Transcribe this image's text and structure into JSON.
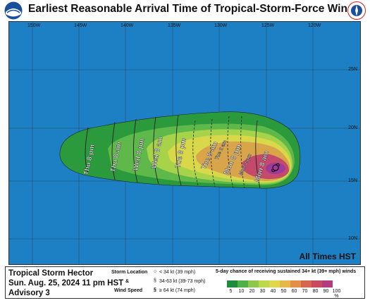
{
  "header": {
    "title": "Earliest Reasonable Arrival Time of Tropical-Storm-Force Winds",
    "left_logo": "noaa-logo",
    "right_logo": "nws-logo"
  },
  "map": {
    "longitude_labels": [
      "150W",
      "145W",
      "140W",
      "135W",
      "130W",
      "125W",
      "120W"
    ],
    "latitude_labels": [
      "25N",
      "20N",
      "15N",
      "10N"
    ],
    "arrival_labels": [
      "Thu 8 pm",
      "Thu 8 am",
      "Wed 8 pm",
      "Wed 8 am",
      "Tue 8 pm",
      "Tue 8 am",
      "Tue 2 am",
      "Mon 8 pm",
      "Mon 2 pm",
      "Mon 8 am"
    ],
    "timezone_note": "All Times HST",
    "colors": {
      "ocean": "#1d80c5",
      "cone_dark": "#2a9a3c",
      "cone_mid": "#5fb84a",
      "cone_light": "#a7d34a",
      "cone_yellow": "#d9d84a",
      "cone_orange": "#d8a54a",
      "cone_core": "#c34a6a",
      "cone_center": "#a03a9a"
    }
  },
  "footer": {
    "storm_name": "Tropical Storm Hector",
    "date": "Sun. Aug. 25, 2024  11 pm HST",
    "advisory": "Advisory 3",
    "legend_storm_location": "Storm Location",
    "legend_amp": "&",
    "legend_wind_speed": "Wind Speed",
    "legend_items": [
      "< 34 kt (39 mph)",
      "34-63 kt (39-73 mph)",
      "≥ 64 kt (74 mph)"
    ],
    "chance_title": "5-day chance of receiving sustained 34+ kt (39+ mph) winds",
    "scale_values": [
      "5",
      "10",
      "20",
      "30",
      "40",
      "50",
      "60",
      "70",
      "80",
      "90",
      "100 %"
    ],
    "scale_colors": [
      "#1e8c3a",
      "#4fb04a",
      "#8cc84b",
      "#bcd94a",
      "#e0d84a",
      "#e6b84a",
      "#e38f48",
      "#d8664e",
      "#c94a5e",
      "#b23b82",
      "#9a2fa8"
    ]
  }
}
